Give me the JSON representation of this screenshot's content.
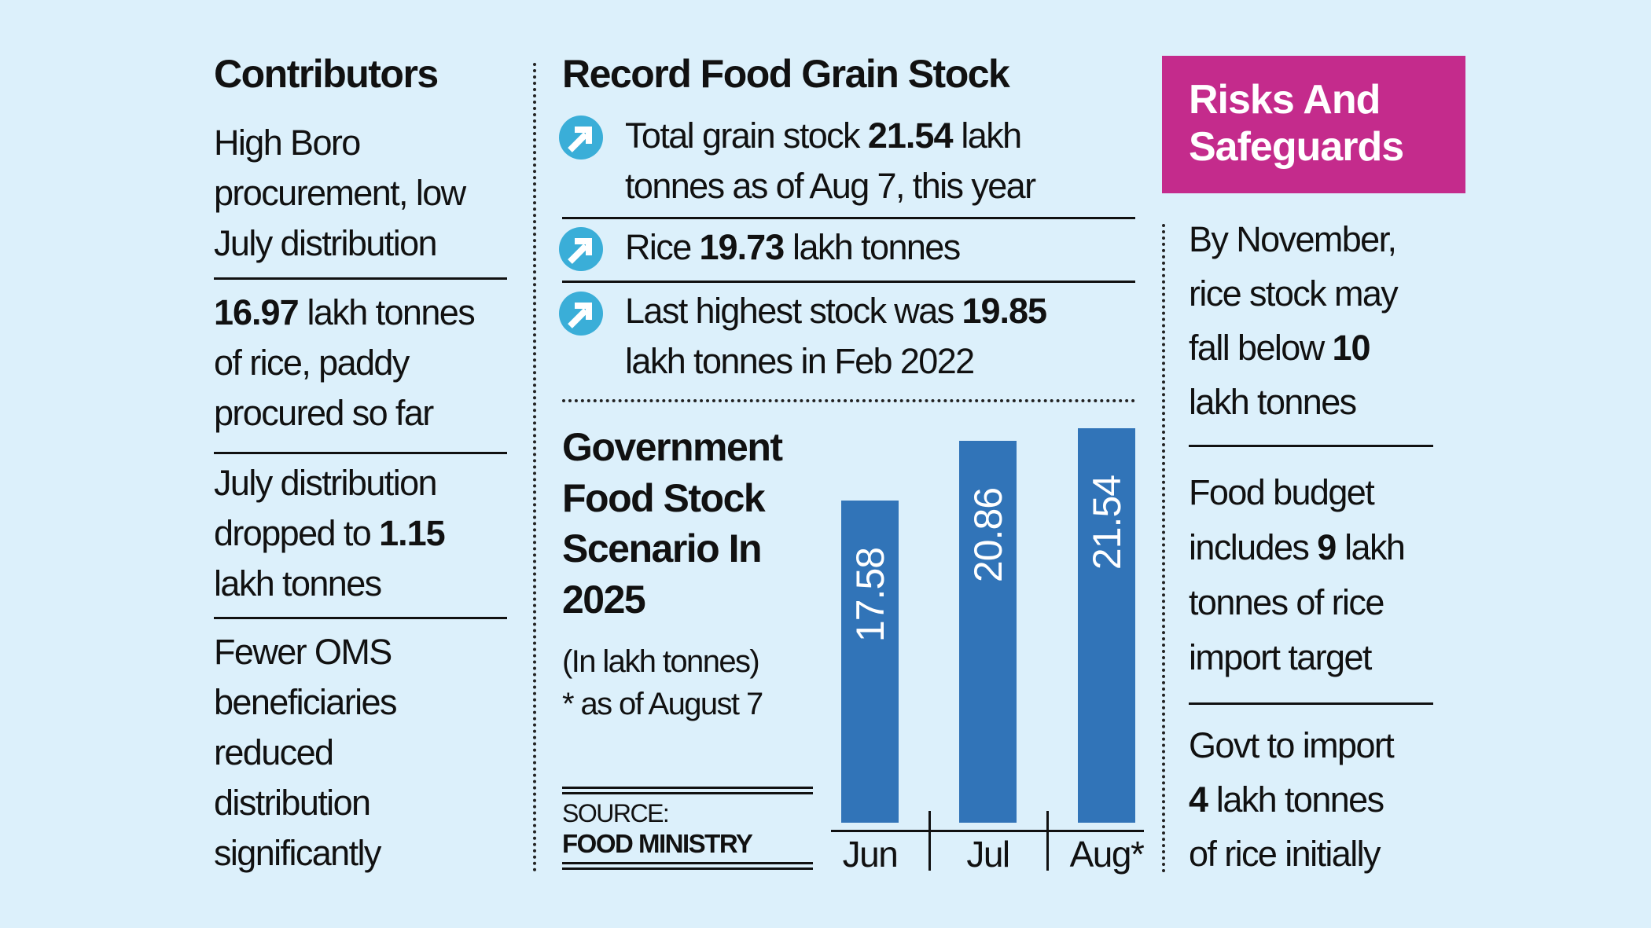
{
  "left": {
    "title": "Contributors",
    "blocks": [
      {
        "lines": [
          "High Boro",
          "procurement, low",
          "July distribution"
        ]
      },
      {
        "bold": "16.97",
        "l1": " lakh tonnes",
        "l2": "of rice, paddy",
        "l3": "procured so far"
      },
      {
        "l1": "July distribution",
        "l2": "dropped to ",
        "bold": "1.15",
        "l3": "lakh tonnes"
      },
      {
        "lines": [
          "Fewer OMS",
          "beneficiaries",
          "reduced",
          "distribution",
          "significantly"
        ]
      }
    ]
  },
  "middle": {
    "title": "Record Food Grain Stock",
    "items": [
      {
        "pre": "Total grain stock ",
        "bold": "21.54",
        "post": " lakh",
        "l2": "tonnes as of Aug 7, this year"
      },
      {
        "pre": "Rice ",
        "bold": "19.73",
        "post": " lakh tonnes"
      },
      {
        "pre": "Last highest stock was ",
        "bold": "19.85",
        "l2": "lakh tonnes in Feb 2022"
      }
    ],
    "icon": "arrow-up-right-circle-icon",
    "icon_color": "#3aaed8"
  },
  "chart_data": {
    "type": "bar",
    "title_lines": [
      "Government",
      "Food Stock",
      "Scenario In",
      "2025"
    ],
    "unit_note": "(In lakh tonnes)",
    "footnote": "* as of August 7",
    "categories": [
      "Jun",
      "Jul",
      "Aug*"
    ],
    "values": [
      17.58,
      20.86,
      21.54
    ],
    "value_labels": [
      "17.58",
      "20.86",
      "21.54"
    ],
    "ylim": [
      0,
      21.54
    ],
    "bar_color": "#3174b8",
    "grid": false,
    "source_label": "SOURCE:",
    "source": "FOOD MINISTRY"
  },
  "right": {
    "title_lines": [
      "Risks And",
      "Safeguards"
    ],
    "title_bg": "#c42b8c",
    "b1": {
      "l1": "By November,",
      "l2": "rice stock may",
      "l3": "fall below ",
      "bold": "10",
      "l4": "lakh tonnes"
    },
    "b2": {
      "l1": "Food budget",
      "l2a": "includes ",
      "bold": "9",
      "l2b": " lakh",
      "l3": "tonnes of rice",
      "l4": "import target"
    },
    "b3": {
      "l1": "Govt to import",
      "bold": "4",
      "l2": " lakh tonnes",
      "l3": "of rice initially"
    }
  }
}
